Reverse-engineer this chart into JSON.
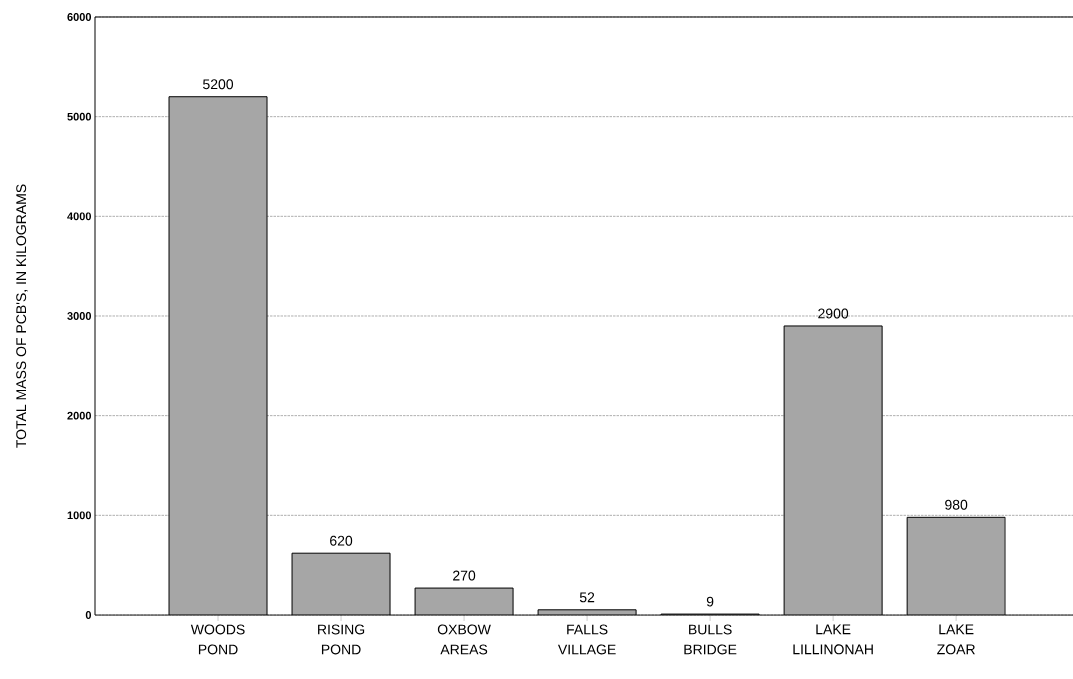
{
  "chart_data": {
    "type": "bar",
    "ylabel": "TOTAL MASS OF PCB'S, IN KILOGRAMS",
    "categories": [
      "WOODS POND",
      "RISING POND",
      "OXBOW AREAS",
      "FALLS VILLAGE",
      "BULLS BRIDGE",
      "LAKE LILLINONAH",
      "LAKE ZOAR"
    ],
    "values": [
      5200,
      620,
      270,
      52,
      9,
      2900,
      980
    ],
    "color": "#a6a6a6",
    "ylim": [
      0,
      6000
    ],
    "yticks": [
      0,
      1000,
      2000,
      3000,
      4000,
      5000,
      6000
    ],
    "grid": "y",
    "data_labels": true
  }
}
